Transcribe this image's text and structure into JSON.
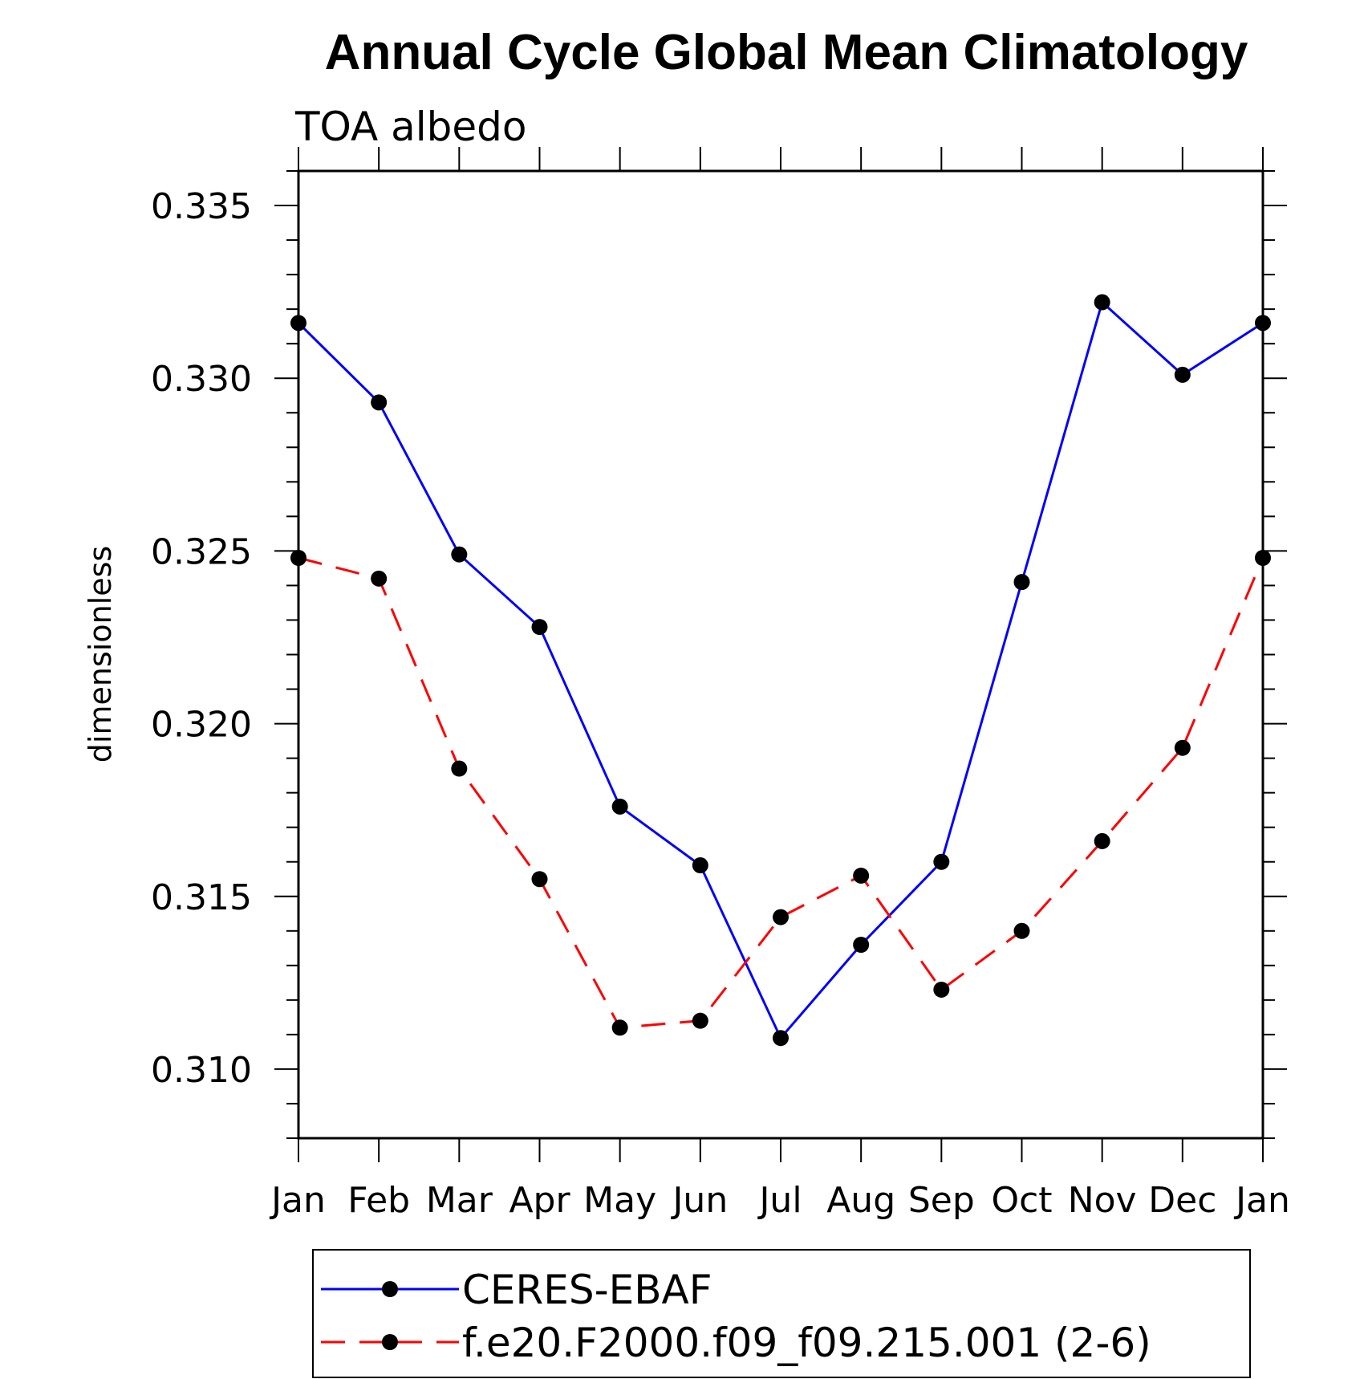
{
  "chart_data": {
    "type": "line",
    "title": "Annual Cycle Global Mean Climatology",
    "subtitle": "TOA albedo",
    "xlabel": "",
    "ylabel": "dimensionless",
    "categories": [
      "Jan",
      "Feb",
      "Mar",
      "Apr",
      "May",
      "Jun",
      "Jul",
      "Aug",
      "Sep",
      "Oct",
      "Nov",
      "Dec",
      "Jan"
    ],
    "ylim": [
      0.308,
      0.336
    ],
    "yticks": [
      0.31,
      0.315,
      0.32,
      0.325,
      0.33,
      0.335
    ],
    "ytick_labels": [
      "0.310",
      "0.315",
      "0.320",
      "0.325",
      "0.330",
      "0.335"
    ],
    "grid": false,
    "legend_position": "bottom",
    "series": [
      {
        "name": "CERES-EBAF",
        "color": "#0000ff",
        "dash": "solid",
        "marker": "filled-circle",
        "values": [
          0.3316,
          0.3293,
          0.3249,
          0.3228,
          0.3176,
          0.3159,
          0.3109,
          0.3136,
          0.316,
          0.3241,
          0.3322,
          0.3301,
          0.3316
        ]
      },
      {
        "name": "f.e20.F2000.f09_f09.215.001 (2-6)",
        "color": "#ff0000",
        "dash": "dashed",
        "marker": "filled-circle",
        "values": [
          0.3248,
          0.3242,
          0.3187,
          0.3155,
          0.3112,
          0.3114,
          0.3144,
          0.3156,
          0.3123,
          0.314,
          0.3166,
          0.3193,
          0.3248
        ]
      }
    ]
  }
}
